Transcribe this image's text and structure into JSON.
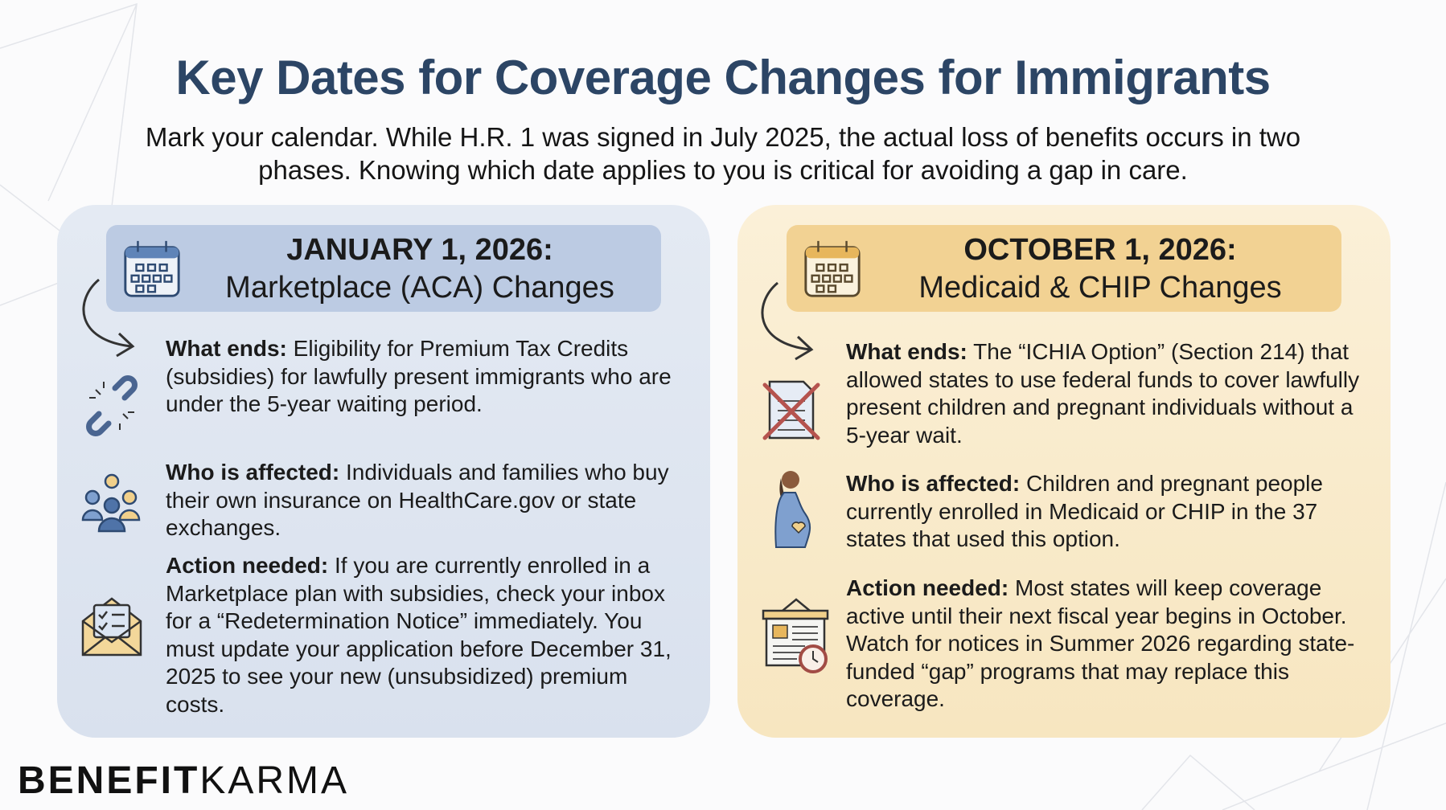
{
  "title": "Key Dates for Coverage Changes for Immigrants",
  "subtitle": "Mark your calendar. While H.R. 1 was signed in July 2025, the actual loss of benefits occurs in two phases. Knowing which date applies to you is critical for avoiding a gap in care.",
  "colors": {
    "title": "#2c4565",
    "left_card": "#dde5f0",
    "right_card": "#f8ebcc",
    "left_band": "#bccbe3",
    "right_band": "#f2d293"
  },
  "left": {
    "date": "JANUARY 1, 2026:",
    "heading": "Marketplace (ACA) Changes",
    "items": [
      {
        "label": "What ends:",
        "text": "Eligibility for Premium Tax Credits (subsidies) for lawfully present immigrants who are under the 5-year waiting period.",
        "icon": "broken-chain-icon"
      },
      {
        "label": "Who is affected:",
        "text": "Individuals and families who buy their own insurance on HealthCare.gov or state exchanges.",
        "icon": "people-group-icon"
      },
      {
        "label": "Action needed:",
        "text": "If you are currently enrolled in a Marketplace plan with subsidies, check your inbox for a “Redetermination Notice” immediately. You must update your application before December 31, 2025 to see your new (unsubsidized) premium costs.",
        "icon": "envelope-checklist-icon"
      }
    ]
  },
  "right": {
    "date": "OCTOBER 1, 2026:",
    "heading": "Medicaid & CHIP Changes",
    "items": [
      {
        "label": "What ends:",
        "text": "The “ICHIA Option” (Section 214) that allowed states to use federal funds to cover lawfully present children and pregnant individuals without a 5-year wait.",
        "icon": "crossed-document-icon"
      },
      {
        "label": "Who is affected:",
        "text": "Children and pregnant people currently enrolled in Medicaid or CHIP in the 37 states that used this option.",
        "icon": "pregnant-person-icon"
      },
      {
        "label": "Action needed:",
        "text": "Most states will keep coverage active until their next fiscal year begins in October. Watch for notices in Summer 2026 regarding state-funded “gap” programs that may replace this coverage.",
        "icon": "notice-board-clock-icon"
      }
    ]
  },
  "logo": {
    "bold": "BENEFIT",
    "light": "KARMA"
  }
}
